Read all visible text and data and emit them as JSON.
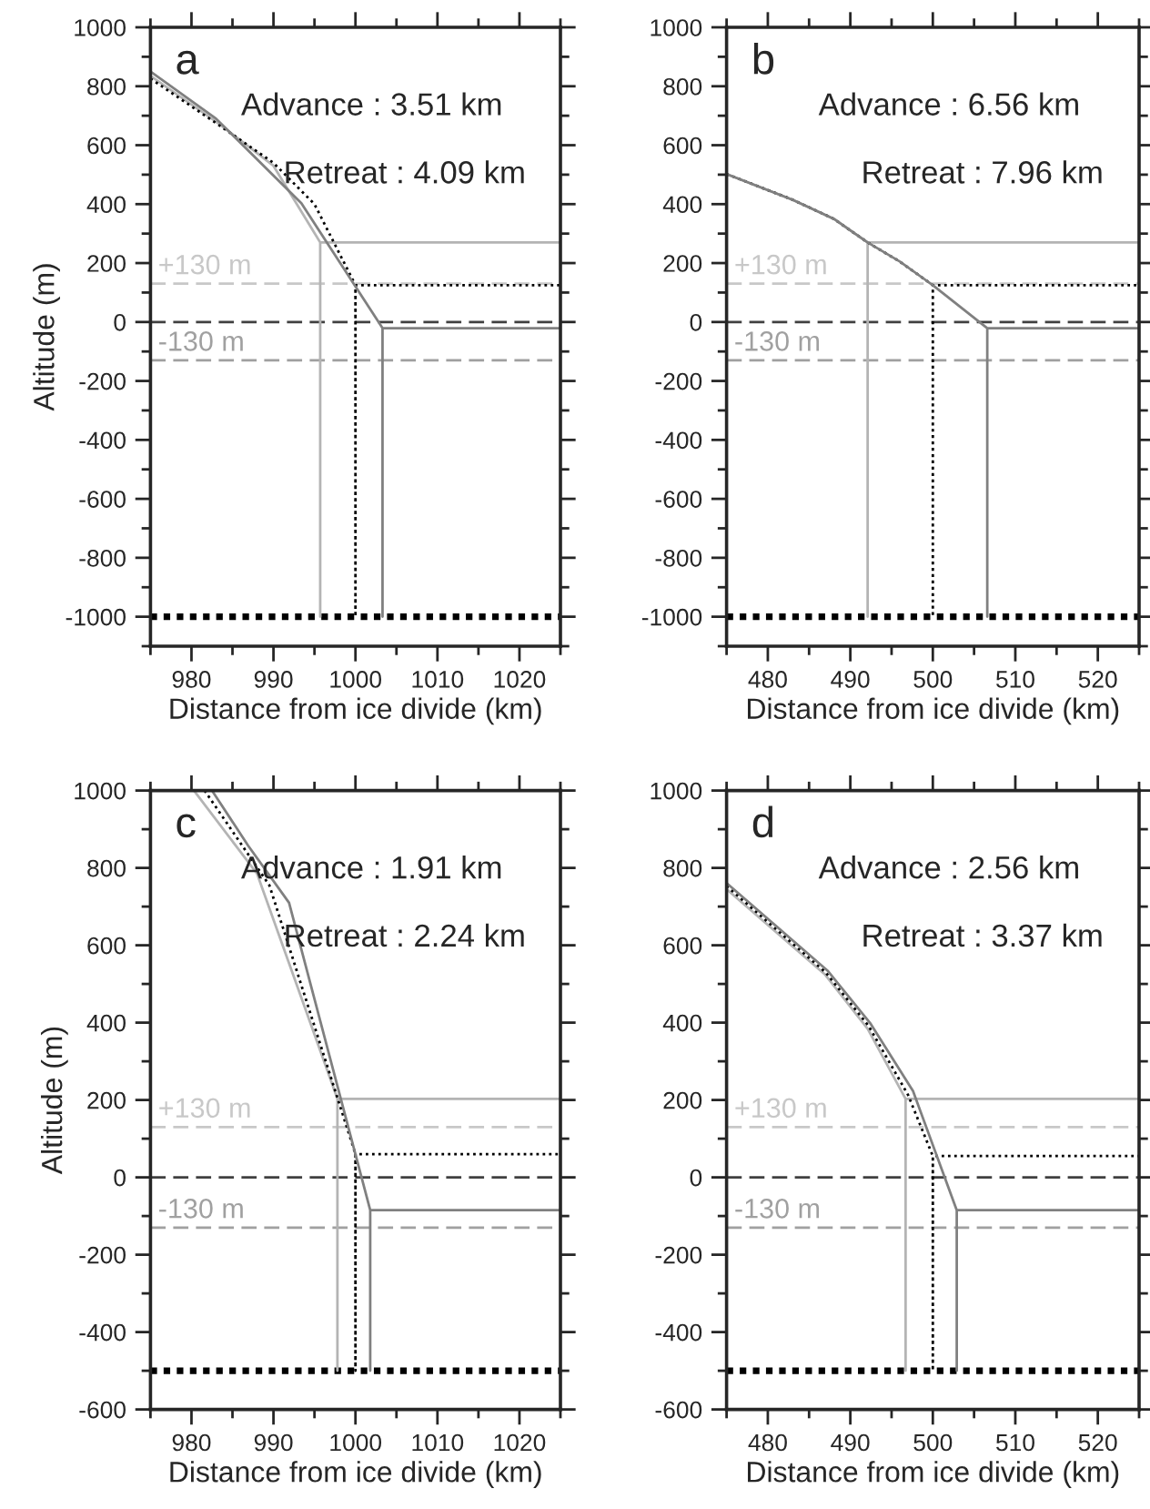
{
  "chart_data": [
    {
      "type": "line",
      "xlabel": "Distance from ice divide (km)",
      "ylabel": "Altitude (m)",
      "xlim": [
        975,
        1025
      ],
      "ylim": [
        -1100,
        1000
      ],
      "xticks": [
        {
          "value": 975,
          "label": null
        },
        980,
        {
          "value": 985,
          "label": null
        },
        990,
        {
          "value": 995,
          "label": null
        },
        1000,
        {
          "value": 1005,
          "label": null
        },
        1010,
        {
          "value": 1015,
          "label": null
        },
        1020,
        {
          "value": 1025,
          "label": null
        }
      ],
      "yticks": [
        {
          "value": -1100,
          "label": null
        },
        -1000,
        {
          "value": -900,
          "label": null
        },
        -800,
        {
          "value": -700,
          "label": null
        },
        -600,
        {
          "value": -500,
          "label": null
        },
        -400,
        {
          "value": -300,
          "label": null
        },
        -200,
        {
          "value": -100,
          "label": null
        },
        0,
        {
          "value": 100,
          "label": null
        },
        200,
        {
          "value": 300,
          "label": null
        },
        400,
        {
          "value": 500,
          "label": null
        },
        600,
        {
          "value": 700,
          "label": null
        },
        800,
        {
          "value": 900,
          "label": null
        },
        1000
      ],
      "series": [
        {
          "color": "#b4b4b4",
          "line_style": "solid",
          "x": [
            975,
            983,
            990,
            995.7,
            995.7,
            995.7,
            1025
          ],
          "values": [
            835,
            680,
            530,
            270,
            -1000,
            270,
            270
          ]
        },
        {
          "color": "#000000",
          "line_style": "dotted",
          "x": [
            975,
            983,
            990,
            995,
            1000,
            1000,
            1000,
            1025
          ],
          "values": [
            826,
            675,
            540,
            400,
            125,
            -1000,
            125,
            125
          ]
        },
        {
          "color": "#808080",
          "line_style": "solid",
          "x": [
            975,
            983,
            993.4,
            1003.3,
            1003.3,
            1003.3,
            1025
          ],
          "values": [
            850,
            690,
            403,
            -21,
            -1000,
            -21,
            -21
          ]
        }
      ],
      "ref_lines": [
        {
          "axis": "y",
          "value": 130,
          "label": "+130 m",
          "color": "#c8c8c8",
          "line_style": "dashed"
        },
        {
          "axis": "y",
          "value": 0,
          "color": "#404040",
          "line_style": "dashed"
        },
        {
          "axis": "y",
          "value": -130,
          "label": "-130 m",
          "color": "#a0a0a0",
          "line_style": "dashed"
        },
        {
          "axis": "y",
          "value": -1000,
          "color": "#000000",
          "line_style": "dotted"
        }
      ],
      "annotations": [
        "a",
        "Advance : 3.51 km",
        "Retreat : 4.09 km"
      ]
    },
    {
      "type": "line",
      "xlabel": "Distance from ice divide (km)",
      "xlim": [
        475,
        525
      ],
      "ylim": [
        -1100,
        1000
      ],
      "xticks": [
        {
          "value": 475,
          "label": null
        },
        480,
        {
          "value": 485,
          "label": null
        },
        490,
        {
          "value": 495,
          "label": null
        },
        500,
        {
          "value": 505,
          "label": null
        },
        510,
        {
          "value": 515,
          "label": null
        },
        520,
        {
          "value": 525,
          "label": null
        }
      ],
      "yticks": [
        {
          "value": -1100,
          "label": null
        },
        -1000,
        {
          "value": -900,
          "label": null
        },
        -800,
        {
          "value": -700,
          "label": null
        },
        -600,
        {
          "value": -500,
          "label": null
        },
        -400,
        {
          "value": -300,
          "label": null
        },
        -200,
        {
          "value": -100,
          "label": null
        },
        0,
        {
          "value": 100,
          "label": null
        },
        200,
        {
          "value": 300,
          "label": null
        },
        400,
        {
          "value": 500,
          "label": null
        },
        600,
        {
          "value": 700,
          "label": null
        },
        800,
        {
          "value": 900,
          "label": null
        },
        1000
      ],
      "series": [
        {
          "color": "#b4b4b4",
          "line_style": "solid",
          "x": [
            475,
            483,
            488,
            492.1,
            492.1,
            492.1,
            525
          ],
          "values": [
            502,
            415,
            350,
            270,
            -1000,
            270,
            270
          ]
        },
        {
          "color": "#000000",
          "line_style": "dotted",
          "x": [
            475,
            483,
            488,
            492.1,
            496,
            500,
            500,
            500,
            525
          ],
          "values": [
            502,
            415,
            350,
            270,
            205,
            125,
            -1000,
            125,
            125
          ]
        },
        {
          "color": "#808080",
          "line_style": "solid",
          "x": [
            475,
            483,
            488,
            492.1,
            496,
            500,
            506.6,
            506.6,
            506.6,
            525
          ],
          "values": [
            502,
            415,
            350,
            270,
            205,
            125,
            -21,
            -1000,
            -21,
            -21
          ]
        }
      ],
      "ref_lines": [
        {
          "axis": "y",
          "value": 130,
          "label": "+130 m",
          "color": "#c8c8c8",
          "line_style": "dashed"
        },
        {
          "axis": "y",
          "value": 0,
          "color": "#404040",
          "line_style": "dashed"
        },
        {
          "axis": "y",
          "value": -130,
          "label": "-130 m",
          "color": "#a0a0a0",
          "line_style": "dashed"
        },
        {
          "axis": "y",
          "value": -1000,
          "color": "#000000",
          "line_style": "dotted"
        }
      ],
      "annotations": [
        "b",
        "Advance : 6.56 km",
        "Retreat : 7.96 km"
      ]
    },
    {
      "type": "line",
      "xlabel": "Distance from ice divide (km)",
      "ylabel": "Altitude (m)",
      "xlim": [
        975,
        1025
      ],
      "ylim": [
        -600,
        1000
      ],
      "xticks": [
        {
          "value": 975,
          "label": null
        },
        980,
        {
          "value": 985,
          "label": null
        },
        990,
        {
          "value": 995,
          "label": null
        },
        1000,
        {
          "value": 1005,
          "label": null
        },
        1010,
        {
          "value": 1015,
          "label": null
        },
        1020,
        {
          "value": 1025,
          "label": null
        }
      ],
      "yticks": [
        -600,
        {
          "value": -500,
          "label": null
        },
        -400,
        {
          "value": -300,
          "label": null
        },
        -200,
        {
          "value": -100,
          "label": null
        },
        0,
        {
          "value": 100,
          "label": null
        },
        200,
        {
          "value": 300,
          "label": null
        },
        400,
        {
          "value": 500,
          "label": null
        },
        600,
        {
          "value": 700,
          "label": null
        },
        800,
        {
          "value": 900,
          "label": null
        },
        1000
      ],
      "series": [
        {
          "color": "#b4b4b4",
          "line_style": "solid",
          "x": [
            980.3,
            988,
            997.8,
            997.8,
            997.8,
            1025
          ],
          "values": [
            1000,
            785,
            203,
            -500,
            203,
            203
          ]
        },
        {
          "color": "#000000",
          "line_style": "dotted",
          "x": [
            981.6,
            989.5,
            1000,
            1000,
            1000,
            1025
          ],
          "values": [
            1000,
            755,
            60,
            -500,
            60,
            60
          ]
        },
        {
          "color": "#808080",
          "line_style": "solid",
          "x": [
            982.5,
            986.9,
            991.9,
            1001.8,
            1001.8,
            1001.8,
            1025
          ],
          "values": [
            1000,
            858,
            710,
            -85,
            -500,
            -85,
            -85
          ]
        }
      ],
      "ref_lines": [
        {
          "axis": "y",
          "value": 130,
          "label": "+130 m",
          "color": "#c8c8c8",
          "line_style": "dashed"
        },
        {
          "axis": "y",
          "value": 0,
          "color": "#404040",
          "line_style": "dashed"
        },
        {
          "axis": "y",
          "value": -130,
          "label": "-130 m",
          "color": "#a0a0a0",
          "line_style": "dashed"
        },
        {
          "axis": "y",
          "value": -500,
          "color": "#000000",
          "line_style": "dotted"
        }
      ],
      "annotations": [
        "c",
        "Advance : 1.91 km",
        "Retreat : 2.24 km"
      ]
    },
    {
      "type": "line",
      "xlabel": "Distance from ice divide (km)",
      "xlim": [
        475,
        525
      ],
      "ylim": [
        -600,
        1000
      ],
      "xticks": [
        {
          "value": 475,
          "label": null
        },
        480,
        {
          "value": 485,
          "label": null
        },
        490,
        {
          "value": 495,
          "label": null
        },
        500,
        {
          "value": 505,
          "label": null
        },
        510,
        {
          "value": 515,
          "label": null
        },
        520,
        {
          "value": 525,
          "label": null
        }
      ],
      "yticks": [
        -600,
        {
          "value": -500,
          "label": null
        },
        -400,
        {
          "value": -300,
          "label": null
        },
        -200,
        {
          "value": -100,
          "label": null
        },
        0,
        {
          "value": 100,
          "label": null
        },
        200,
        {
          "value": 300,
          "label": null
        },
        400,
        {
          "value": 500,
          "label": null
        },
        600,
        {
          "value": 700,
          "label": null
        },
        800,
        {
          "value": 900,
          "label": null
        },
        1000
      ],
      "series": [
        {
          "color": "#b4b4b4",
          "line_style": "solid",
          "x": [
            475,
            486.9,
            492.1,
            496.7,
            496.7,
            496.7,
            525
          ],
          "values": [
            745,
            525,
            384,
            203,
            -500,
            203,
            203
          ]
        },
        {
          "color": "#000000",
          "line_style": "dotted",
          "x": [
            475,
            487,
            492.2,
            497,
            500,
            500,
            500,
            525
          ],
          "values": [
            753,
            530,
            392,
            213,
            55,
            -500,
            55,
            55
          ]
        },
        {
          "color": "#808080",
          "line_style": "solid",
          "x": [
            475,
            487.3,
            492.4,
            497.6,
            502.9,
            502.9,
            502.9,
            525
          ],
          "values": [
            761,
            533,
            399,
            223,
            -85,
            -500,
            -85,
            -85
          ]
        }
      ],
      "ref_lines": [
        {
          "axis": "y",
          "value": 130,
          "label": "+130 m",
          "color": "#c8c8c8",
          "line_style": "dashed"
        },
        {
          "axis": "y",
          "value": 0,
          "color": "#404040",
          "line_style": "dashed"
        },
        {
          "axis": "y",
          "value": -130,
          "label": "-130 m",
          "color": "#a0a0a0",
          "line_style": "dashed"
        },
        {
          "axis": "y",
          "value": -500,
          "color": "#000000",
          "line_style": "dotted"
        }
      ],
      "annotations": [
        "d",
        "Advance : 2.56 km",
        "Retreat : 3.37 km"
      ]
    }
  ]
}
